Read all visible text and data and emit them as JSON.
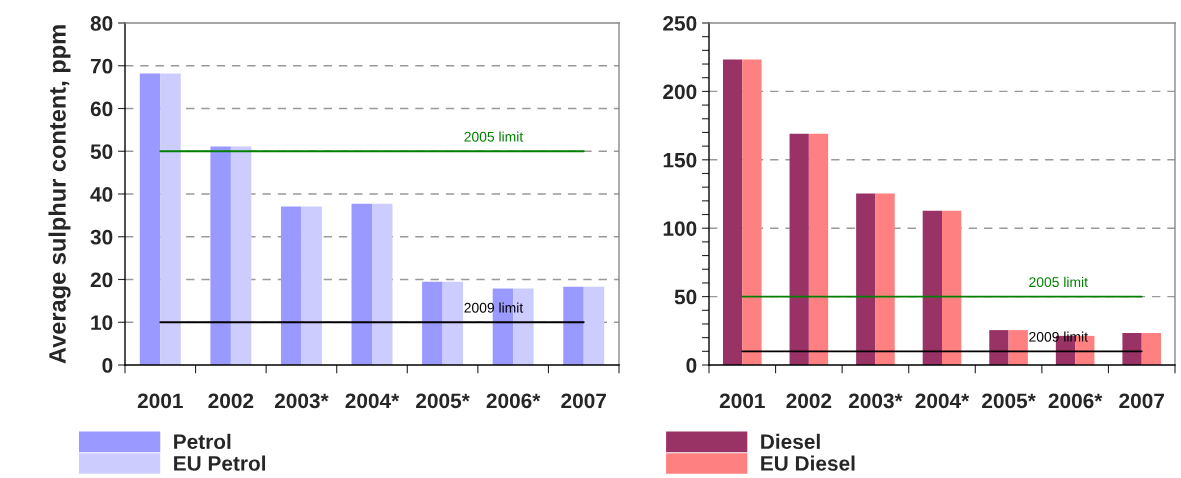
{
  "chart_data": [
    {
      "type": "bar",
      "ylabel": "Average sulphur content, ppm",
      "categories": [
        "2001",
        "2002",
        "2003*",
        "2004*",
        "2005*",
        "2006*",
        "2007"
      ],
      "series": [
        {
          "name": "Petrol",
          "color": "#9999ff",
          "values": [
            68.2,
            51.1,
            37.1,
            37.7,
            19.5,
            17.9,
            18.3
          ]
        },
        {
          "name": "EU Petrol",
          "color": "#ccccff",
          "values": [
            68.2,
            51.1,
            37.1,
            37.7,
            19.5,
            17.9,
            18.3
          ]
        }
      ],
      "ylim": [
        0,
        80
      ],
      "yticks": [
        0,
        10,
        20,
        30,
        40,
        50,
        60,
        70,
        80
      ],
      "grid": "y",
      "legend": "bottom",
      "ref_lines": [
        {
          "axis": "y",
          "value": 50,
          "label": "2005 limit",
          "color": "#008000"
        },
        {
          "axis": "y",
          "value": 10,
          "label": "2009 limit",
          "color": "#000000"
        }
      ]
    },
    {
      "type": "bar",
      "categories": [
        "2001",
        "2002",
        "2003*",
        "2004*",
        "2005*",
        "2006*",
        "2007"
      ],
      "series": [
        {
          "name": "Diesel",
          "color": "#993366",
          "values": [
            223.3,
            169,
            125.3,
            112.7,
            25.5,
            21.3,
            23.4
          ]
        },
        {
          "name": "EU Diesel",
          "color": "#ff8080",
          "values": [
            223.3,
            169,
            125.3,
            112.7,
            25.5,
            21.3,
            23.4
          ]
        }
      ],
      "ylim": [
        0,
        250
      ],
      "yticks": [
        0,
        {
          "value": 10,
          "label": null
        },
        {
          "value": 20,
          "label": null
        },
        {
          "value": 30,
          "label": null
        },
        {
          "value": 40,
          "label": null
        },
        50,
        {
          "value": 60,
          "label": null
        },
        {
          "value": 70,
          "label": null
        },
        {
          "value": 80,
          "label": null
        },
        {
          "value": 90,
          "label": null
        },
        100,
        {
          "value": 110,
          "label": null
        },
        {
          "value": 120,
          "label": null
        },
        {
          "value": 130,
          "label": null
        },
        {
          "value": 140,
          "label": null
        },
        150,
        {
          "value": 160,
          "label": null
        },
        {
          "value": 170,
          "label": null
        },
        {
          "value": 180,
          "label": null
        },
        {
          "value": 190,
          "label": null
        },
        200,
        {
          "value": 210,
          "label": null
        },
        {
          "value": 220,
          "label": null
        },
        {
          "value": 230,
          "label": null
        },
        {
          "value": 240,
          "label": null
        },
        250
      ],
      "grid": "y",
      "legend": "bottom",
      "ref_lines": [
        {
          "axis": "y",
          "value": 50,
          "label": "2005 limit",
          "color": "#008000"
        },
        {
          "axis": "y",
          "value": 10,
          "label": "2009 limit",
          "color": "#000000"
        }
      ]
    }
  ]
}
